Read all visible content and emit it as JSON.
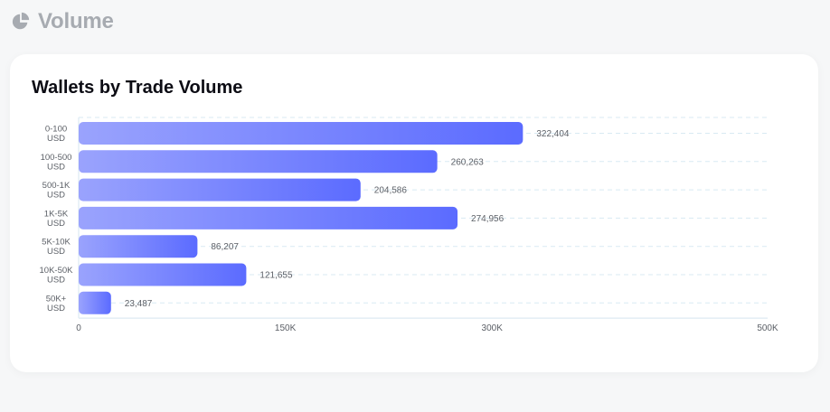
{
  "section": {
    "title": "Volume",
    "icon": "pie-chart-icon"
  },
  "colors": {
    "bar_start": "#9aa3fd",
    "bar_end": "#5b6bff",
    "grid": "#d8eaf3",
    "axis": "#ddeaf2",
    "label": "#5b5f66",
    "title": "#a7abb1"
  },
  "chart_data": {
    "type": "bar",
    "orientation": "horizontal",
    "title": "Wallets by Trade Volume",
    "xlabel": "",
    "ylabel": "",
    "categories": [
      [
        "0-100",
        "USD"
      ],
      [
        "100-500",
        "USD"
      ],
      [
        "500-1K",
        "USD"
      ],
      [
        "1K-5K",
        "USD"
      ],
      [
        "5K-10K",
        "USD"
      ],
      [
        "10K-50K",
        "USD"
      ],
      [
        "50K+",
        "USD"
      ]
    ],
    "values": [
      322404,
      260263,
      204586,
      274956,
      86207,
      121655,
      23487
    ],
    "data_labels": [
      "322,404",
      "260,263",
      "204,586",
      "274,956",
      "86,207",
      "121,655",
      "23,487"
    ],
    "xlim": [
      0,
      500000
    ],
    "x_ticks": [
      {
        "value": 0,
        "label": "0"
      },
      {
        "value": 150000,
        "label": "150K"
      },
      {
        "value": 300000,
        "label": "300K"
      },
      {
        "value": 500000,
        "label": "500K"
      }
    ],
    "grid": true,
    "legend": "none"
  }
}
